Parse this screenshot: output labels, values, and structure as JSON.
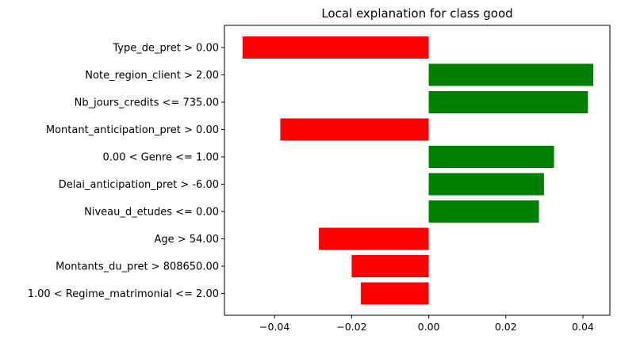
{
  "chart_data": {
    "type": "bar",
    "orientation": "horizontal",
    "title": "Local explanation for class good",
    "xlabel": "",
    "ylabel": "",
    "xlim": [
      -0.053,
      0.047
    ],
    "grid": false,
    "legend": "none",
    "categories": [
      "Type_de_pret > 0.00",
      "Note_region_client > 2.00",
      "Nb_jours_credits <= 735.00",
      "Montant_anticipation_pret > 0.00",
      "0.00 < Genre <= 1.00",
      "Delai_anticipation_pret > -6.00",
      "Niveau_d_etudes <= 0.00",
      "Age > 54.00",
      "Montants_du_pret > 808650.00",
      "1.00 < Regime_matrimonial <= 2.00"
    ],
    "values": [
      -0.0483,
      0.0427,
      0.0413,
      -0.0385,
      0.0325,
      0.0299,
      0.0286,
      -0.0285,
      -0.02,
      -0.0176
    ],
    "xticks": [
      -0.04,
      -0.02,
      0.0,
      0.02,
      0.04
    ],
    "xtick_labels": [
      "−0.04",
      "−0.02",
      "0.00",
      "0.02",
      "0.04"
    ],
    "colors": {
      "positive": "#008000",
      "negative": "#ff0000"
    }
  }
}
